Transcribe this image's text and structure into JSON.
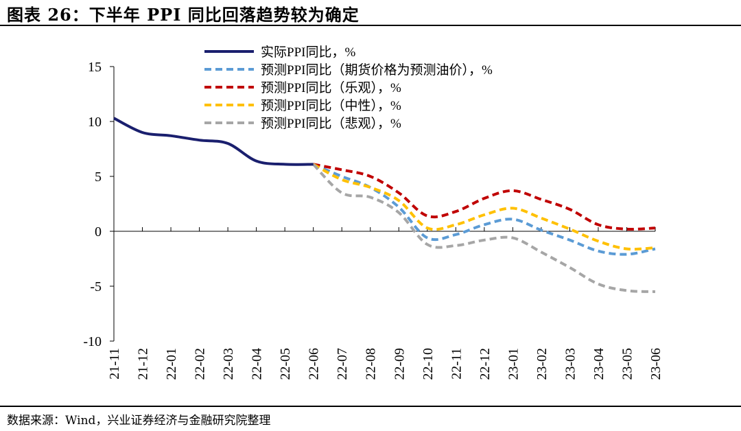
{
  "header": {
    "title": "图表 26：下半年 PPI 同比回落趋势较为确定"
  },
  "footer": {
    "source": "数据来源：Wind，兴业证券经济与金融研究院整理"
  },
  "chart_data": {
    "type": "line",
    "categories": [
      "21-11",
      "21-12",
      "22-01",
      "22-02",
      "22-03",
      "22-04",
      "22-05",
      "22-06",
      "22-07",
      "22-08",
      "22-09",
      "22-10",
      "22-11",
      "22-12",
      "23-01",
      "23-02",
      "23-03",
      "23-04",
      "23-05",
      "23-06"
    ],
    "ylim": [
      -10,
      15
    ],
    "yticks": [
      -10,
      -5,
      0,
      5,
      10,
      15
    ],
    "legend_position": "top",
    "series": [
      {
        "name": "实际PPI同比，%",
        "color": "#1a1f6e",
        "dash": "solid",
        "values": [
          10.3,
          9.0,
          8.7,
          8.3,
          8.0,
          6.4,
          6.1,
          6.1,
          null,
          null,
          null,
          null,
          null,
          null,
          null,
          null,
          null,
          null,
          null,
          null
        ]
      },
      {
        "name": "预测PPI同比（期货价格为预测油价），%",
        "color": "#5b9bd5",
        "dash": "dashed",
        "values": [
          null,
          null,
          null,
          null,
          null,
          null,
          null,
          6.1,
          5.0,
          4.0,
          2.2,
          -0.6,
          -0.3,
          0.6,
          1.1,
          0.1,
          -0.8,
          -1.8,
          -2.1,
          -1.6
        ]
      },
      {
        "name": "预测PPI同比（乐观），%",
        "color": "#c00000",
        "dash": "dashed",
        "values": [
          null,
          null,
          null,
          null,
          null,
          null,
          null,
          6.1,
          5.6,
          5.0,
          3.5,
          1.4,
          1.8,
          3.0,
          3.7,
          2.9,
          2.0,
          0.6,
          0.2,
          0.3
        ]
      },
      {
        "name": "预测PPI同比（中性），%",
        "color": "#ffc000",
        "dash": "dashed",
        "values": [
          null,
          null,
          null,
          null,
          null,
          null,
          null,
          6.1,
          4.7,
          4.0,
          2.8,
          0.3,
          0.6,
          1.5,
          2.1,
          1.2,
          0.2,
          -0.9,
          -1.6,
          -1.5
        ]
      },
      {
        "name": "预测PPI同比（悲观），%",
        "color": "#a6a6a6",
        "dash": "dashed",
        "values": [
          null,
          null,
          null,
          null,
          null,
          null,
          null,
          6.1,
          3.5,
          3.1,
          1.7,
          -1.2,
          -1.3,
          -0.8,
          -0.6,
          -1.9,
          -3.3,
          -4.8,
          -5.4,
          -5.5
        ]
      }
    ]
  }
}
